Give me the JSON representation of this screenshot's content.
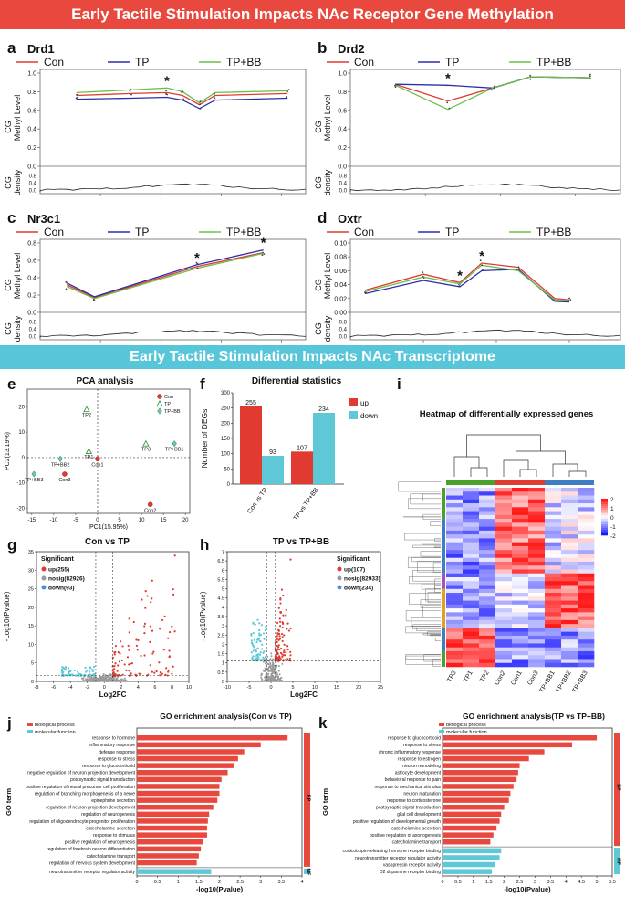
{
  "banners": {
    "top": "Early Tactile Stimulation Impacts NAc Receptor Gene Methylation",
    "middle": "Early Tactile Stimulation Impacts NAc Transcriptome"
  },
  "colors": {
    "con": "#e03a31",
    "tp": "#2b2fa8",
    "tpbb": "#6cc04a",
    "up": "#e03a31",
    "down": "#5ec8d6",
    "nosig": "#9a9a9a",
    "go_bp": "#e8483e",
    "go_mf": "#5ec8d6",
    "banner_red": "#e8483e",
    "banner_blue": "#58c6d9"
  },
  "methylation_common": {
    "legend": [
      "Con",
      "TP",
      "TP+BB"
    ],
    "ylabel": "CG Methyl Level",
    "density_label": "CG density",
    "star": "*"
  },
  "chart_data": [
    {
      "panel": "a",
      "gene": "Drd1",
      "type": "line",
      "xlim": [
        0,
        220
      ],
      "xticks": [
        "50",
        "100",
        "150",
        "200"
      ],
      "ylim": [
        0.0,
        1.0
      ],
      "yticks": [
        "0.0",
        "0.2",
        "0.4",
        "0.6",
        "0.8",
        "1.0"
      ],
      "density_ticks": [
        "0.8",
        "0.4",
        "0.0"
      ],
      "x": [
        30,
        75,
        105,
        118,
        132,
        145,
        205
      ],
      "series": [
        {
          "name": "Con",
          "values": [
            0.76,
            0.78,
            0.79,
            0.76,
            0.66,
            0.76,
            0.78
          ]
        },
        {
          "name": "TP",
          "values": [
            0.72,
            0.73,
            0.74,
            0.71,
            0.62,
            0.71,
            0.73
          ]
        },
        {
          "name": "TP+BB",
          "values": [
            0.79,
            0.82,
            0.84,
            0.8,
            0.68,
            0.79,
            0.81
          ]
        }
      ],
      "star_x": 105
    },
    {
      "panel": "b",
      "gene": "Drd2",
      "type": "line",
      "xlim": [
        0,
        180
      ],
      "xticks": [
        "50",
        "100",
        "150"
      ],
      "ylim": [
        0.0,
        1.0
      ],
      "yticks": [
        "0.0",
        "0.2",
        "0.4",
        "0.6",
        "0.8",
        "1.0"
      ],
      "density_ticks": [
        "0.8",
        "0.4",
        "0.0"
      ],
      "x": [
        30,
        65,
        95,
        120,
        160
      ],
      "series": [
        {
          "name": "Con",
          "values": [
            0.88,
            0.7,
            0.84,
            0.96,
            0.95
          ]
        },
        {
          "name": "TP",
          "values": [
            0.88,
            0.87,
            0.84,
            0.96,
            0.95
          ]
        },
        {
          "name": "TP+BB",
          "values": [
            0.87,
            0.61,
            0.84,
            0.96,
            0.95
          ]
        }
      ],
      "star_x": 65
    },
    {
      "panel": "c",
      "gene": "Nr3c1",
      "type": "line",
      "xlim": [
        0,
        220
      ],
      "xticks": [
        "50",
        "100",
        "150",
        "200"
      ],
      "ylim": [
        0.0,
        0.8
      ],
      "yticks": [
        "0.0",
        "0.2",
        "0.4",
        "0.6",
        "0.8"
      ],
      "density_ticks": [
        "0.8",
        "0.4",
        "0.0"
      ],
      "x": [
        22,
        45,
        130,
        185
      ],
      "series": [
        {
          "name": "Con",
          "values": [
            0.32,
            0.17,
            0.53,
            0.69
          ]
        },
        {
          "name": "TP",
          "values": [
            0.34,
            0.18,
            0.55,
            0.72
          ]
        },
        {
          "name": "TP+BB",
          "values": [
            0.3,
            0.16,
            0.51,
            0.68
          ]
        }
      ],
      "star_x": [
        130,
        185
      ]
    },
    {
      "panel": "d",
      "gene": "Oxtr",
      "type": "line",
      "xlim": [
        0,
        185
      ],
      "xticks": [
        "50",
        "100",
        "150"
      ],
      "ylim": [
        0.0,
        0.1
      ],
      "yticks": [
        "0.00",
        "0.02",
        "0.04",
        "0.06",
        "0.08",
        "0.10"
      ],
      "density_ticks": [
        "0.8",
        "0.4",
        "0.0"
      ],
      "x": [
        10,
        50,
        75,
        90,
        115,
        140,
        150
      ],
      "series": [
        {
          "name": "Con",
          "values": [
            0.032,
            0.055,
            0.043,
            0.071,
            0.065,
            0.02,
            0.018
          ]
        },
        {
          "name": "TP",
          "values": [
            0.027,
            0.046,
            0.037,
            0.06,
            0.062,
            0.016,
            0.015
          ]
        },
        {
          "name": "TP+BB",
          "values": [
            0.03,
            0.051,
            0.041,
            0.068,
            0.06,
            0.018,
            0.017
          ]
        }
      ],
      "star_x": [
        75,
        90
      ]
    },
    {
      "panel": "e",
      "type": "scatter",
      "title": "PCA analysis",
      "xlabel": "PC1(15.95%)",
      "ylabel": "PC2(13.19%)",
      "xlim": [
        -16,
        21
      ],
      "ylim": [
        -22,
        27
      ],
      "xticks": [
        "-15",
        "-10",
        "-5",
        "0",
        "5",
        "10",
        "15",
        "20"
      ],
      "yticks": [
        "-20",
        "-10",
        "0",
        "10",
        "20"
      ],
      "legend": [
        "Con",
        "TP",
        "TP+BB"
      ],
      "points": [
        {
          "label": "TP2",
          "group": "TP",
          "x": -2.5,
          "y": 19
        },
        {
          "label": "TP3",
          "group": "TP",
          "x": 11,
          "y": 5.5
        },
        {
          "label": "TP+BB1",
          "group": "TP+BB",
          "x": 17.5,
          "y": 5.5
        },
        {
          "label": "TP1",
          "group": "TP",
          "x": -2,
          "y": 2.5
        },
        {
          "label": "Con1",
          "group": "Con",
          "x": 0,
          "y": -0.5
        },
        {
          "label": "TP+BB2",
          "group": "TP+BB",
          "x": -8.5,
          "y": -0.5
        },
        {
          "label": "Con3",
          "group": "Con",
          "x": -7.5,
          "y": -6.5
        },
        {
          "label": "TP+BB3",
          "group": "TP+BB",
          "x": -14.5,
          "y": -6.5
        },
        {
          "label": "Con2",
          "group": "Con",
          "x": 12,
          "y": -18.5
        }
      ]
    },
    {
      "panel": "f",
      "type": "bar",
      "title": "Differential statistics",
      "ylabel": "Number of DEGs",
      "categories": [
        "Con vs TP",
        "TP vs TP+BB"
      ],
      "ylim": [
        0,
        300
      ],
      "yticks": [
        "0",
        "50",
        "100",
        "150",
        "200",
        "250",
        "300"
      ],
      "series": [
        {
          "name": "up",
          "values": [
            255,
            107
          ]
        },
        {
          "name": "down",
          "values": [
            93,
            234
          ]
        }
      ],
      "value_labels": [
        "255",
        "93",
        "107",
        "234"
      ]
    },
    {
      "panel": "g",
      "type": "scatter",
      "subtype": "volcano",
      "title": "Con vs TP",
      "xlabel": "Log2FC",
      "ylabel": "-Log10(Pvalue)",
      "xlim": [
        -8,
        10
      ],
      "ylim": [
        0,
        35
      ],
      "xticks": [
        "-8",
        "-6",
        "-4",
        "-2",
        "0",
        "2",
        "4",
        "6",
        "8",
        "10"
      ],
      "yticks": [
        "0",
        "5",
        "10",
        "15",
        "20",
        "25",
        "30",
        "35"
      ],
      "legend_title": "Significant",
      "legend": [
        "up(255)",
        "nosig(82926)",
        "down(93)"
      ],
      "counts": {
        "up": 255,
        "nosig": 82926,
        "down": 93
      }
    },
    {
      "panel": "h",
      "type": "scatter",
      "subtype": "volcano",
      "title": "TP vs TP+BB",
      "xlabel": "Log2FC",
      "ylabel": "-Log10(Pvalue)",
      "xlim": [
        -10,
        25
      ],
      "ylim": [
        0,
        7
      ],
      "xticks": [
        "-10",
        "-5",
        "0",
        "5",
        "10",
        "15",
        "20",
        "25"
      ],
      "yticks": [
        "0",
        "0.5",
        "1",
        "1.5",
        "2",
        "2.5",
        "3",
        "3.5",
        "4",
        "4.5",
        "5",
        "5.5",
        "6",
        "6.5",
        "7"
      ],
      "legend_title": "Significant",
      "legend": [
        "up(107)",
        "nosig(82933)",
        "down(234)"
      ],
      "counts": {
        "up": 107,
        "nosig": 82933,
        "down": 234
      }
    },
    {
      "panel": "i",
      "type": "heatmap",
      "title": "Heatmap of differentially expressed genes",
      "columns": [
        "TP3",
        "TP1",
        "TP2",
        "Con2",
        "Con1",
        "Con3",
        "TP+BB1",
        "TP+BB2",
        "TP+BB3"
      ],
      "colorbar": [
        "2",
        "1",
        "0",
        "-1",
        "-2"
      ]
    },
    {
      "panel": "j",
      "type": "bar",
      "orientation": "horizontal",
      "title": "GO enrichment analysis(Con vs TP)",
      "xlabel": "-log10(Pvalue)",
      "ylabel": "GO term",
      "xlim": [
        0,
        4
      ],
      "xticks": [
        "0",
        "0.5",
        "1",
        "1.5",
        "2",
        "2.5",
        "3",
        "3.5",
        "4"
      ],
      "legend": [
        "biological_process",
        "molecular_function"
      ],
      "side_labels": [
        "BP",
        "MF"
      ],
      "categories": [
        "response to hormone",
        "inflammatory response",
        "defense response",
        "response to stress",
        "response to glucocorticoid",
        "negative regulation of neuron projection development",
        "postsynaptic signal transduction",
        "positive regulation of neural precursor cell proliferation",
        "regulation of branching morphogenesis of a nerve",
        "epinephrine secretion",
        "regulation of neuron projection development",
        "regulation of neurogenesis",
        "regulation of oligodendrocyte progenitor proliferation",
        "catecholamine secretion",
        "response to stimulus",
        "positive regulation of neurogenesis",
        "regulation of forebrain neuron differentiation",
        "catecholamine transport",
        "regulation of nervous system development",
        "neurotransmitter receptor regulator activity"
      ],
      "values": [
        3.65,
        3.0,
        2.6,
        2.45,
        2.35,
        2.2,
        2.05,
        2.0,
        2.0,
        1.95,
        1.85,
        1.75,
        1.72,
        1.7,
        1.7,
        1.6,
        1.55,
        1.5,
        1.45,
        1.8
      ],
      "groups": [
        "BP",
        "BP",
        "BP",
        "BP",
        "BP",
        "BP",
        "BP",
        "BP",
        "BP",
        "BP",
        "BP",
        "BP",
        "BP",
        "BP",
        "BP",
        "BP",
        "BP",
        "BP",
        "BP",
        "MF"
      ]
    },
    {
      "panel": "k",
      "type": "bar",
      "orientation": "horizontal",
      "title": "GO enrichment analysis(TP vs TP+BB)",
      "xlabel": "-log10(Pvalue)",
      "ylabel": "GO term",
      "xlim": [
        0,
        5.5
      ],
      "xticks": [
        "0",
        "0.5",
        "1",
        "1.5",
        "2",
        "2.5",
        "3",
        "3.5",
        "4",
        "4.5",
        "5",
        "5.5"
      ],
      "legend": [
        "biological_process",
        "molecular_function"
      ],
      "side_labels": [
        "BP",
        "MF"
      ],
      "categories": [
        "response to glucocorticoid",
        "response to stress",
        "chronic inflammatory response",
        "response to estrogen",
        "neuron remodeling",
        "astrocyte development",
        "behavioral response to pain",
        "response to mechanical stimulus",
        "neuron maturation",
        "response to corticosterone",
        "postsynaptic signal transduction",
        "glial cell development",
        "positive regulation of developmental growth",
        "catecholamine secretion",
        "positive regulation of axonogenesis",
        "catecholamine transport",
        "corticotropin-releasing hormone receptor binding",
        "neurotransmitter receptor regulator activity",
        "vasopressin receptor activity",
        "D2 dopamine receptor binding"
      ],
      "values": [
        5.0,
        4.2,
        3.3,
        2.8,
        2.5,
        2.45,
        2.4,
        2.3,
        2.2,
        2.15,
        2.0,
        1.9,
        1.85,
        1.75,
        1.65,
        1.55,
        1.9,
        1.85,
        1.7,
        1.6
      ],
      "groups": [
        "BP",
        "BP",
        "BP",
        "BP",
        "BP",
        "BP",
        "BP",
        "BP",
        "BP",
        "BP",
        "BP",
        "BP",
        "BP",
        "BP",
        "BP",
        "BP",
        "MF",
        "MF",
        "MF",
        "MF"
      ]
    }
  ]
}
